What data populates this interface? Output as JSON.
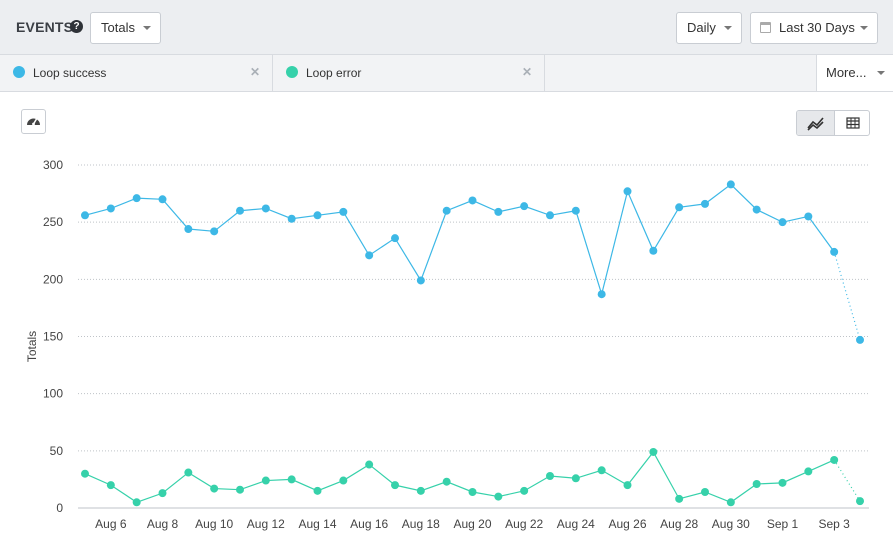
{
  "header": {
    "title": "EVENTS",
    "help_icon": "question-circle-icon",
    "metric_select": "Totals",
    "interval_select": "Daily",
    "date_range": "Last 30 Days"
  },
  "series_tabs": [
    {
      "label": "Loop success",
      "color": "#3db8e6"
    },
    {
      "label": "Loop error",
      "color": "#36d1aa"
    }
  ],
  "more_label": "More...",
  "toolbar": {
    "gauge_icon": "dashboard-gauge-icon",
    "line_view_icon": "line-chart-icon",
    "table_view_icon": "table-icon"
  },
  "chart_data": {
    "type": "line",
    "ylabel": "Totals",
    "xlabel": "",
    "ylim": [
      0,
      300
    ],
    "yticks": [
      0,
      50,
      100,
      150,
      200,
      250,
      300
    ],
    "grid": true,
    "x": [
      "Aug 5",
      "Aug 6",
      "Aug 7",
      "Aug 8",
      "Aug 9",
      "Aug 10",
      "Aug 11",
      "Aug 12",
      "Aug 13",
      "Aug 14",
      "Aug 15",
      "Aug 16",
      "Aug 17",
      "Aug 18",
      "Aug 19",
      "Aug 20",
      "Aug 21",
      "Aug 22",
      "Aug 23",
      "Aug 24",
      "Aug 25",
      "Aug 26",
      "Aug 27",
      "Aug 28",
      "Aug 29",
      "Aug 30",
      "Aug 31",
      "Sep 1",
      "Sep 2",
      "Sep 3",
      "Sep 4"
    ],
    "xtick_labels": [
      "Aug 6",
      "Aug 8",
      "Aug 10",
      "Aug 12",
      "Aug 14",
      "Aug 16",
      "Aug 18",
      "Aug 20",
      "Aug 22",
      "Aug 24",
      "Aug 26",
      "Aug 28",
      "Aug 30",
      "Sep 1",
      "Sep 3"
    ],
    "series": [
      {
        "name": "Loop success",
        "color": "#3db8e6",
        "values": [
          256,
          262,
          271,
          270,
          244,
          242,
          260,
          262,
          253,
          256,
          259,
          221,
          236,
          199,
          260,
          269,
          259,
          264,
          256,
          260,
          187,
          277,
          225,
          263,
          266,
          283,
          261,
          250,
          255,
          224,
          147
        ]
      },
      {
        "name": "Loop error",
        "color": "#36d1aa",
        "values": [
          30,
          20,
          5,
          13,
          31,
          17,
          16,
          24,
          25,
          15,
          24,
          38,
          20,
          15,
          23,
          14,
          10,
          15,
          28,
          26,
          33,
          20,
          49,
          8,
          14,
          5,
          21,
          22,
          32,
          42,
          6
        ]
      }
    ],
    "last_point_partial": true
  }
}
